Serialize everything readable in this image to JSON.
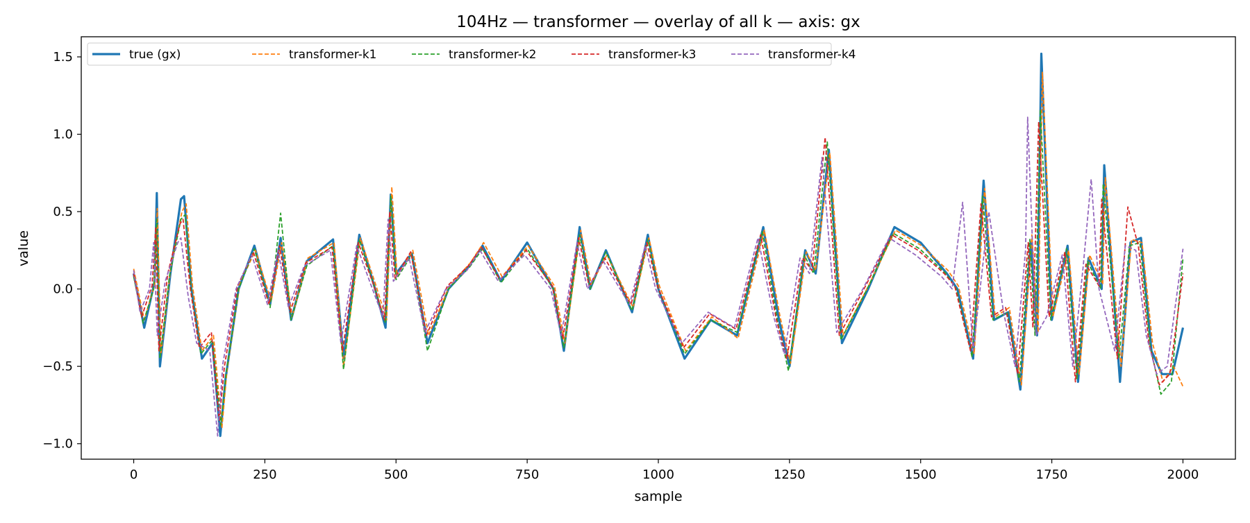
{
  "chart_data": {
    "type": "line",
    "title": "104Hz — transformer — overlay of all k — axis: gx",
    "xlabel": "sample",
    "ylabel": "value",
    "xlim": [
      -100,
      2100
    ],
    "ylim": [
      -1.1,
      1.63
    ],
    "xticks": [
      0,
      250,
      500,
      750,
      1000,
      1250,
      1500,
      1750,
      2000
    ],
    "xtick_labels": [
      "0",
      "250",
      "500",
      "750",
      "1000",
      "1250",
      "1500",
      "1750",
      "2000"
    ],
    "yticks": [
      -1.0,
      -0.5,
      0.0,
      0.5,
      1.0,
      1.5
    ],
    "ytick_labels": [
      "−1.0",
      "−0.5",
      "0.0",
      "0.5",
      "1.0",
      "1.5"
    ],
    "grid": false,
    "legend_position": "top-left",
    "series": [
      {
        "name": "true (gx)",
        "style": "solid",
        "color": "#1f77b4",
        "x": [
          0,
          20,
          40,
          44,
          50,
          70,
          90,
          96,
          110,
          130,
          150,
          165,
          175,
          200,
          230,
          260,
          280,
          300,
          330,
          380,
          400,
          430,
          460,
          480,
          490,
          500,
          530,
          560,
          600,
          640,
          665,
          700,
          750,
          800,
          820,
          850,
          870,
          900,
          950,
          980,
          1000,
          1050,
          1100,
          1150,
          1200,
          1230,
          1250,
          1280,
          1300,
          1325,
          1350,
          1400,
          1450,
          1500,
          1550,
          1570,
          1600,
          1620,
          1640,
          1667,
          1690,
          1710,
          1722,
          1730,
          1750,
          1780,
          1800,
          1820,
          1845,
          1850,
          1880,
          1900,
          1920,
          1940,
          1960,
          1980,
          2000
        ],
        "y": [
          0.1,
          -0.25,
          0.05,
          0.62,
          -0.5,
          0.1,
          0.58,
          0.6,
          0.0,
          -0.45,
          -0.35,
          -0.95,
          -0.58,
          0.0,
          0.28,
          -0.1,
          0.33,
          -0.2,
          0.18,
          0.32,
          -0.45,
          0.35,
          0.0,
          -0.25,
          0.61,
          0.1,
          0.23,
          -0.35,
          0.0,
          0.15,
          0.28,
          0.05,
          0.3,
          0.0,
          -0.4,
          0.4,
          0.0,
          0.25,
          -0.15,
          0.35,
          0.0,
          -0.45,
          -0.2,
          -0.3,
          0.4,
          -0.2,
          -0.5,
          0.25,
          0.1,
          0.9,
          -0.35,
          0.0,
          0.4,
          0.3,
          0.1,
          0.0,
          -0.45,
          0.7,
          -0.2,
          -0.15,
          -0.65,
          0.3,
          -0.3,
          1.52,
          -0.2,
          0.28,
          -0.6,
          0.2,
          0.0,
          0.8,
          -0.6,
          0.3,
          0.33,
          -0.4,
          -0.55,
          -0.55,
          -0.25
        ]
      },
      {
        "name": "transformer-k1",
        "style": "dashed",
        "color": "#ff7f0e",
        "x": [
          0,
          20,
          40,
          45,
          52,
          70,
          92,
          100,
          112,
          130,
          152,
          168,
          178,
          202,
          232,
          262,
          282,
          302,
          332,
          382,
          400,
          432,
          462,
          482,
          492,
          502,
          532,
          562,
          602,
          642,
          667,
          702,
          752,
          802,
          822,
          852,
          872,
          902,
          952,
          982,
          1002,
          1052,
          1102,
          1152,
          1202,
          1232,
          1252,
          1282,
          1300,
          1327,
          1352,
          1402,
          1452,
          1502,
          1552,
          1572,
          1602,
          1622,
          1642,
          1669,
          1692,
          1712,
          1724,
          1732,
          1752,
          1782,
          1802,
          1822,
          1847,
          1852,
          1882,
          1902,
          1922,
          1942,
          1962,
          1982,
          2000
        ],
        "y": [
          0.13,
          -0.2,
          0.03,
          0.52,
          -0.42,
          0.12,
          0.5,
          0.55,
          0.02,
          -0.4,
          -0.3,
          -0.9,
          -0.52,
          0.03,
          0.25,
          -0.08,
          0.3,
          -0.18,
          0.2,
          0.3,
          -0.5,
          0.33,
          0.02,
          -0.2,
          0.66,
          0.08,
          0.25,
          -0.3,
          0.02,
          0.17,
          0.3,
          0.08,
          0.28,
          0.02,
          -0.35,
          0.38,
          0.03,
          0.22,
          -0.12,
          0.33,
          0.02,
          -0.4,
          -0.18,
          -0.32,
          0.38,
          -0.18,
          -0.48,
          0.24,
          0.12,
          0.88,
          -0.3,
          0.03,
          0.38,
          0.28,
          0.12,
          0.02,
          -0.42,
          0.65,
          -0.18,
          -0.12,
          -0.62,
          0.35,
          -0.28,
          1.4,
          -0.18,
          0.25,
          -0.55,
          0.22,
          0.03,
          0.72,
          -0.5,
          0.32,
          0.3,
          -0.35,
          -0.6,
          -0.5,
          -0.63
        ]
      },
      {
        "name": "transformer-k2",
        "style": "dashed",
        "color": "#2ca02c",
        "x": [
          0,
          18,
          38,
          44,
          50,
          68,
          90,
          98,
          110,
          128,
          150,
          166,
          176,
          200,
          230,
          260,
          280,
          300,
          330,
          380,
          400,
          430,
          460,
          480,
          490,
          500,
          530,
          560,
          600,
          640,
          665,
          700,
          750,
          800,
          820,
          850,
          870,
          900,
          950,
          980,
          1000,
          1050,
          1100,
          1150,
          1198,
          1228,
          1248,
          1278,
          1296,
          1322,
          1348,
          1398,
          1448,
          1498,
          1548,
          1568,
          1598,
          1618,
          1638,
          1665,
          1688,
          1708,
          1718,
          1728,
          1748,
          1778,
          1798,
          1818,
          1843,
          1848,
          1878,
          1898,
          1918,
          1938,
          1958,
          1978,
          2000
        ],
        "y": [
          0.08,
          -0.22,
          0.0,
          0.45,
          -0.45,
          0.08,
          0.45,
          0.48,
          -0.02,
          -0.42,
          -0.33,
          -0.88,
          -0.55,
          0.0,
          0.26,
          -0.12,
          0.49,
          -0.2,
          0.15,
          0.28,
          -0.52,
          0.32,
          0.0,
          -0.22,
          0.6,
          0.06,
          0.22,
          -0.4,
          0.0,
          0.14,
          0.26,
          0.04,
          0.26,
          0.0,
          -0.38,
          0.35,
          0.0,
          0.24,
          -0.14,
          0.32,
          0.0,
          -0.42,
          -0.2,
          -0.28,
          0.37,
          -0.22,
          -0.53,
          0.22,
          0.1,
          0.95,
          -0.33,
          0.0,
          0.36,
          0.26,
          0.1,
          0.0,
          -0.44,
          0.6,
          -0.2,
          -0.15,
          -0.6,
          0.32,
          -0.3,
          1.16,
          -0.2,
          0.26,
          -0.58,
          0.18,
          0.0,
          0.68,
          -0.45,
          0.28,
          0.3,
          -0.38,
          -0.68,
          -0.6,
          0.2
        ]
      },
      {
        "name": "transformer-k3",
        "style": "dashed",
        "color": "#d62728",
        "x": [
          0,
          15,
          35,
          42,
          48,
          65,
          88,
          94,
          108,
          125,
          148,
          163,
          173,
          198,
          228,
          258,
          278,
          298,
          328,
          378,
          398,
          428,
          458,
          478,
          488,
          498,
          528,
          558,
          598,
          638,
          663,
          698,
          748,
          798,
          818,
          848,
          868,
          898,
          948,
          978,
          998,
          1048,
          1098,
          1148,
          1195,
          1225,
          1245,
          1275,
          1293,
          1318,
          1345,
          1395,
          1445,
          1495,
          1545,
          1565,
          1595,
          1615,
          1635,
          1662,
          1685,
          1705,
          1714,
          1725,
          1745,
          1775,
          1795,
          1815,
          1840,
          1845,
          1875,
          1895,
          1915,
          1935,
          1955,
          1975,
          2000
        ],
        "y": [
          0.1,
          -0.18,
          0.02,
          0.4,
          -0.4,
          0.1,
          0.42,
          0.45,
          0.0,
          -0.38,
          -0.28,
          -0.85,
          -0.5,
          0.02,
          0.24,
          -0.1,
          0.28,
          -0.15,
          0.17,
          0.27,
          -0.4,
          0.3,
          0.02,
          -0.2,
          0.5,
          0.07,
          0.24,
          -0.3,
          0.02,
          0.15,
          0.27,
          0.06,
          0.25,
          0.02,
          -0.32,
          0.33,
          0.02,
          0.2,
          -0.1,
          0.3,
          0.02,
          -0.38,
          -0.16,
          -0.26,
          0.35,
          -0.2,
          -0.45,
          0.2,
          0.12,
          0.98,
          -0.3,
          0.02,
          0.35,
          0.25,
          0.1,
          0.02,
          -0.4,
          0.55,
          -0.18,
          -0.12,
          -0.55,
          0.3,
          -0.25,
          1.08,
          -0.18,
          0.24,
          -0.6,
          0.16,
          0.02,
          0.58,
          -0.45,
          0.53,
          0.28,
          -0.35,
          -0.62,
          -0.55,
          0.1
        ]
      },
      {
        "name": "transformer-k4",
        "style": "dashed",
        "color": "#9467bd",
        "x": [
          0,
          12,
          30,
          38,
          45,
          60,
          84,
          90,
          104,
          120,
          145,
          160,
          170,
          195,
          225,
          255,
          275,
          295,
          325,
          375,
          395,
          425,
          455,
          475,
          485,
          495,
          525,
          555,
          595,
          635,
          660,
          695,
          745,
          795,
          815,
          845,
          865,
          895,
          945,
          975,
          995,
          1045,
          1095,
          1145,
          1190,
          1220,
          1240,
          1270,
          1288,
          1312,
          1340,
          1390,
          1440,
          1490,
          1540,
          1560,
          1580,
          1600,
          1630,
          1658,
          1680,
          1700,
          1704,
          1720,
          1740,
          1770,
          1790,
          1810,
          1825,
          1840,
          1870,
          1890,
          1910,
          1930,
          1950,
          1970,
          2000
        ],
        "y": [
          0.12,
          -0.15,
          0.0,
          0.3,
          -0.3,
          0.05,
          0.3,
          0.33,
          -0.05,
          -0.35,
          -0.4,
          -0.95,
          -0.48,
          0.0,
          0.22,
          -0.1,
          0.25,
          -0.12,
          0.15,
          0.25,
          -0.35,
          0.28,
          0.0,
          -0.18,
          0.45,
          0.05,
          0.2,
          -0.28,
          0.0,
          0.12,
          0.25,
          0.05,
          0.22,
          0.0,
          -0.3,
          0.3,
          0.0,
          0.18,
          -0.1,
          0.28,
          0.0,
          -0.35,
          -0.15,
          -0.25,
          0.33,
          -0.18,
          -0.42,
          0.2,
          0.1,
          0.85,
          -0.28,
          0.0,
          0.33,
          0.22,
          0.08,
          0.0,
          0.56,
          -0.4,
          0.5,
          -0.15,
          -0.5,
          0.25,
          1.11,
          -0.3,
          -0.18,
          0.22,
          -0.5,
          0.15,
          0.71,
          0.0,
          -0.4,
          0.28,
          0.25,
          -0.3,
          -0.55,
          -0.5,
          0.26
        ]
      }
    ]
  }
}
